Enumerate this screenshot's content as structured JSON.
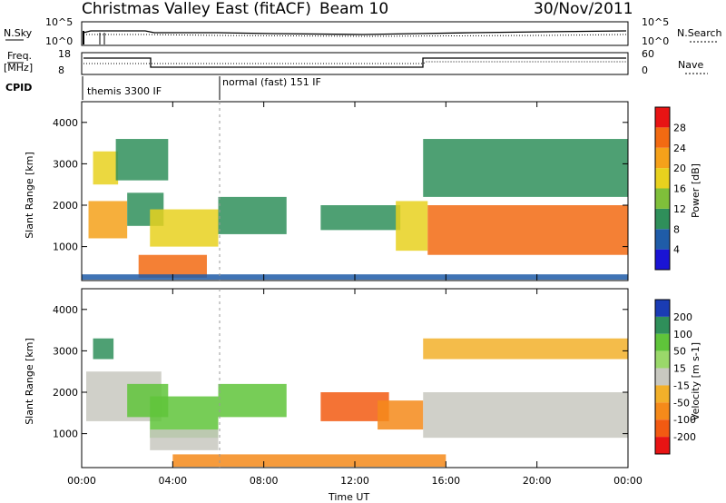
{
  "header": {
    "station": "Christmas Valley East (fitACF)",
    "beam": "Beam 10",
    "date": "30/Nov/2011"
  },
  "panels": {
    "nsky_label": "N.Sky",
    "nsearch_label": "N.Search",
    "nsky_ticks": [
      "10^5",
      "10^0"
    ],
    "nsearch_ticks": [
      "10^5",
      "10^0"
    ],
    "freq_label_1": "Freq.",
    "freq_label_2": "[MHz]",
    "freq_ticks": [
      "18",
      "8"
    ],
    "nave_label": "Nave",
    "nave_ticks": [
      "60",
      "0"
    ],
    "cpid_label": "CPID",
    "cpid_segments": [
      {
        "label": "themis 3300 IF",
        "start_hour": 0,
        "end_hour": 6
      },
      {
        "label": "normal (fast) 151 IF",
        "start_hour": 6,
        "end_hour": 24
      }
    ]
  },
  "chart_data": [
    {
      "type": "heatmap",
      "name": "Power",
      "ylabel": "Slant Range [km]",
      "xlabel": "",
      "x_ticks": [
        "00:00",
        "04:00",
        "08:00",
        "12:00",
        "16:00",
        "20:00",
        "00:00"
      ],
      "y_ticks": [
        1000,
        2000,
        3000,
        4000
      ],
      "xlim_hours": [
        0,
        24
      ],
      "ylim_km": [
        180,
        4500
      ],
      "colorbar_label": "Power [dB]",
      "colorbar_ticks": [
        4,
        8,
        12,
        16,
        20,
        24,
        28
      ],
      "colorbar_colors": [
        "#1a14d4",
        "#1f5ca8",
        "#2f8f5a",
        "#7fbf3a",
        "#e8d11e",
        "#f5a11a",
        "#f26a12",
        "#e81414"
      ],
      "echo_regions": [
        {
          "t0": 0.3,
          "t1": 2.0,
          "r0": 1200,
          "r1": 2100,
          "value": 20
        },
        {
          "t0": 0.5,
          "t1": 1.6,
          "r0": 2500,
          "r1": 3300,
          "value": 16
        },
        {
          "t0": 1.5,
          "t1": 3.8,
          "r0": 2600,
          "r1": 3600,
          "value": 8
        },
        {
          "t0": 2.0,
          "t1": 3.6,
          "r0": 1500,
          "r1": 2300,
          "value": 10
        },
        {
          "t0": 3.0,
          "t1": 6.0,
          "r0": 1000,
          "r1": 1900,
          "value": 16
        },
        {
          "t0": 6.0,
          "t1": 9.0,
          "r0": 1300,
          "r1": 2200,
          "value": 9
        },
        {
          "t0": 2.5,
          "t1": 5.5,
          "r0": 250,
          "r1": 800,
          "value": 24
        },
        {
          "t0": 10.5,
          "t1": 14.0,
          "r0": 1400,
          "r1": 2000,
          "value": 10
        },
        {
          "t0": 13.8,
          "t1": 15.2,
          "r0": 900,
          "r1": 2100,
          "value": 18
        },
        {
          "t0": 15.2,
          "t1": 24.0,
          "r0": 800,
          "r1": 2000,
          "value": 24
        },
        {
          "t0": 15.0,
          "t1": 24.0,
          "r0": 2200,
          "r1": 3600,
          "value": 8
        },
        {
          "t0": 0.0,
          "t1": 24.0,
          "r0": 200,
          "r1": 330,
          "value": 6
        }
      ]
    },
    {
      "type": "heatmap",
      "name": "Velocity",
      "ylabel": "Slant Range [km]",
      "xlabel": "Time UT",
      "x_ticks": [
        "00:00",
        "04:00",
        "08:00",
        "12:00",
        "16:00",
        "20:00",
        "00:00"
      ],
      "y_ticks": [
        1000,
        2000,
        3000,
        4000
      ],
      "xlim_hours": [
        0,
        24
      ],
      "ylim_km": [
        180,
        4500
      ],
      "colorbar_label": "Velocity [m s-1]",
      "colorbar_ticks": [
        200,
        100,
        50,
        15,
        -15,
        -50,
        -100,
        -200
      ],
      "colorbar_colors": [
        "#1a3cb4",
        "#2f8f5a",
        "#5fc43a",
        "#9ad86a",
        "#c8c8c0",
        "#f2b02a",
        "#f58a1a",
        "#f25a12",
        "#e81414"
      ],
      "echo_regions": [
        {
          "t0": 0.2,
          "t1": 3.5,
          "r0": 1300,
          "r1": 2500,
          "value": 0
        },
        {
          "t0": 0.5,
          "t1": 1.4,
          "r0": 2800,
          "r1": 3300,
          "value": 150
        },
        {
          "t0": 2.0,
          "t1": 3.8,
          "r0": 1400,
          "r1": 2200,
          "value": 60
        },
        {
          "t0": 3.0,
          "t1": 6.0,
          "r0": 900,
          "r1": 1900,
          "value": 60
        },
        {
          "t0": 6.0,
          "t1": 9.0,
          "r0": 1400,
          "r1": 2200,
          "value": 60
        },
        {
          "t0": 3.0,
          "t1": 6.0,
          "r0": 600,
          "r1": 1100,
          "value": 0
        },
        {
          "t0": 10.5,
          "t1": 13.5,
          "r0": 1300,
          "r1": 2000,
          "value": -150
        },
        {
          "t0": 13.0,
          "t1": 15.0,
          "r0": 1100,
          "r1": 1800,
          "value": -60
        },
        {
          "t0": 15.0,
          "t1": 24.0,
          "r0": 900,
          "r1": 2000,
          "value": 0
        },
        {
          "t0": 15.0,
          "t1": 24.0,
          "r0": 2800,
          "r1": 3300,
          "value": -20
        },
        {
          "t0": 4.0,
          "t1": 16.0,
          "r0": 200,
          "r1": 500,
          "value": -60
        }
      ]
    }
  ]
}
